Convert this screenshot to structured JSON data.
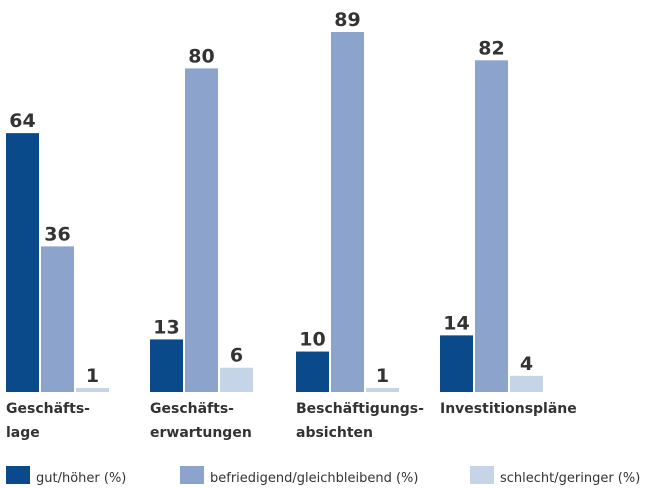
{
  "chart_data": {
    "type": "bar",
    "categories": [
      [
        "Geschäfts-",
        "lage"
      ],
      [
        "Geschäfts-",
        "erwartungen"
      ],
      [
        "Beschäftigungs-",
        "absichten"
      ],
      [
        "Investitionspläne"
      ]
    ],
    "series": [
      {
        "name": "gut/höher (%)",
        "color": "#0b4a8a",
        "values": [
          64,
          13,
          10,
          14
        ]
      },
      {
        "name": "befriedigend/gleichbleibend (%)",
        "color": "#8ca4cb",
        "values": [
          36,
          80,
          89,
          82
        ]
      },
      {
        "name": "schlecht/geringer (%)",
        "color": "#c5d4e7",
        "values": [
          1,
          6,
          1,
          4
        ]
      }
    ]
  }
}
